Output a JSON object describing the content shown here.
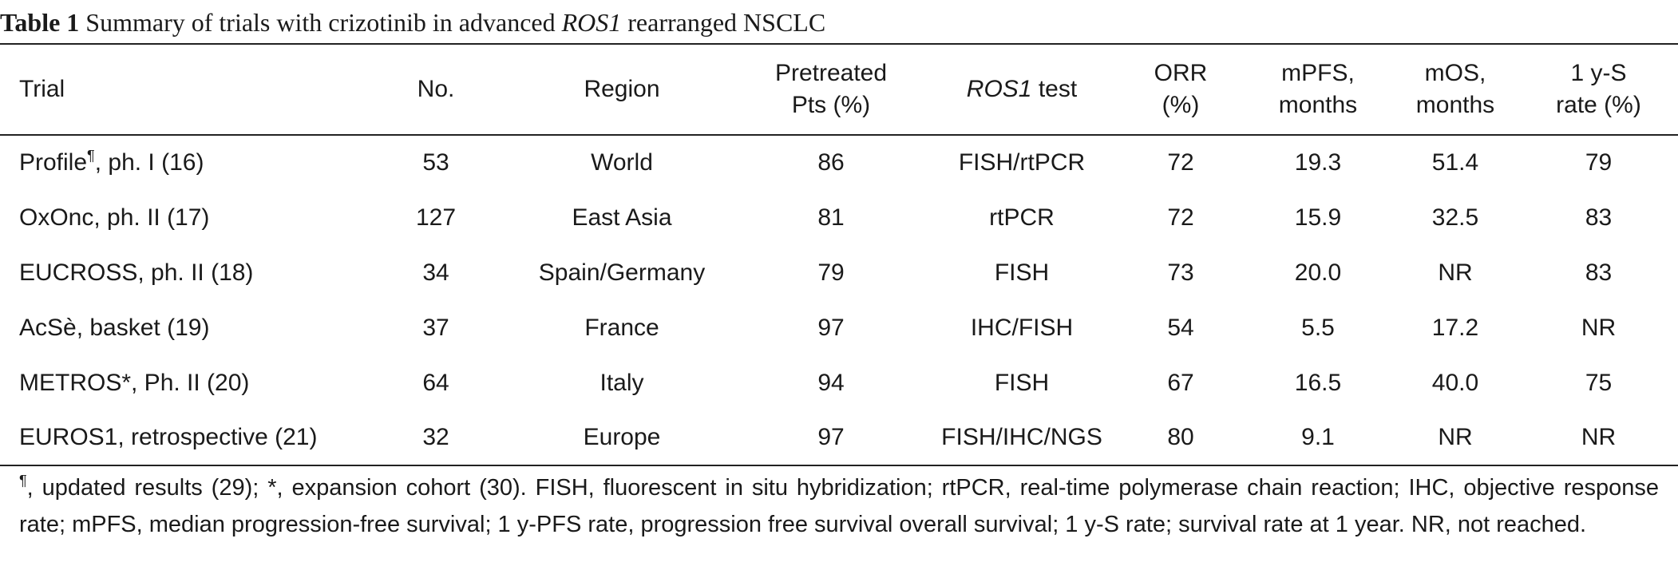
{
  "caption": {
    "label": "Table 1",
    "text_before": " Summary of trials with crizotinib in advanced ",
    "text_italic": "ROS1",
    "text_after": " rearranged NSCLC"
  },
  "table": {
    "headers": {
      "trial": "Trial",
      "no": "No.",
      "region": "Region",
      "pretreated_l1": "Pretreated",
      "pretreated_l2": "Pts (%)",
      "ros1_italic": "ROS1",
      "ros1_rest": " test",
      "orr_l1": "ORR",
      "orr_l2": "(%)",
      "mpfs_l1": "mPFS,",
      "mpfs_l2": "months",
      "mos_l1": "mOS,",
      "mos_l2": "months",
      "ys_l1": "1 y-S",
      "ys_l2": "rate (%)"
    },
    "rows": [
      {
        "trial": "Profile",
        "trial_sup": "¶",
        "trial_rest": ", ph. I (16)",
        "no": "53",
        "region": "World",
        "pretreated": "86",
        "ros1_test": "FISH/rtPCR",
        "orr": "72",
        "mpfs": "19.3",
        "mos": "51.4",
        "ys_rate": "79"
      },
      {
        "trial": "OxOnc, ph. II (17)",
        "trial_sup": "",
        "trial_rest": "",
        "no": "127",
        "region": "East Asia",
        "pretreated": "81",
        "ros1_test": "rtPCR",
        "orr": "72",
        "mpfs": "15.9",
        "mos": "32.5",
        "ys_rate": "83"
      },
      {
        "trial": "EUCROSS, ph. II (18)",
        "trial_sup": "",
        "trial_rest": "",
        "no": "34",
        "region": "Spain/Germany",
        "pretreated": "79",
        "ros1_test": "FISH",
        "orr": "73",
        "mpfs": "20.0",
        "mos": "NR",
        "ys_rate": "83"
      },
      {
        "trial": "AcSè, basket (19)",
        "trial_sup": "",
        "trial_rest": "",
        "no": "37",
        "region": "France",
        "pretreated": "97",
        "ros1_test": "IHC/FISH",
        "orr": "54",
        "mpfs": "5.5",
        "mos": "17.2",
        "ys_rate": "NR"
      },
      {
        "trial": "METROS*, Ph. II (20)",
        "trial_sup": "",
        "trial_rest": "",
        "no": "64",
        "region": "Italy",
        "pretreated": "94",
        "ros1_test": "FISH",
        "orr": "67",
        "mpfs": "16.5",
        "mos": "40.0",
        "ys_rate": "75"
      },
      {
        "trial": "EUROS1, retrospective (21)",
        "trial_sup": "",
        "trial_rest": "",
        "no": "32",
        "region": "Europe",
        "pretreated": "97",
        "ros1_test": "FISH/IHC/NGS",
        "orr": "80",
        "mpfs": "9.1",
        "mos": "NR",
        "ys_rate": "NR"
      }
    ]
  },
  "footnote": {
    "sup": "¶",
    "text": ", updated results (29); *, expansion cohort (30). FISH, fluorescent in situ hybridization; rtPCR, real-time polymerase chain reaction; IHC, objective response rate; mPFS, median progression-free survival; 1 y-PFS rate, progression free survival overall survival; 1 y-S rate; survival rate at 1 year. NR, not reached."
  }
}
